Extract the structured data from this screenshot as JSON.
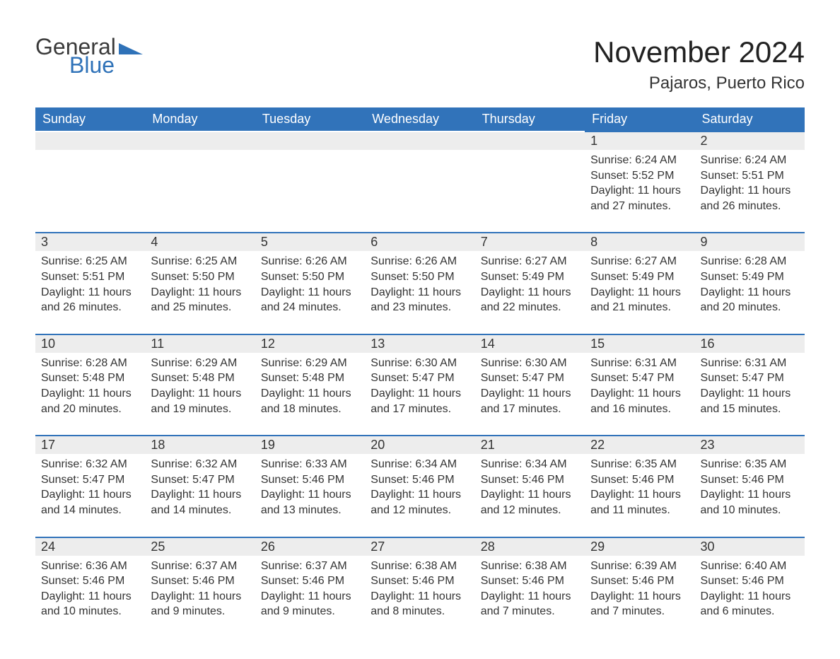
{
  "logo": {
    "text1": "General",
    "text2": "Blue",
    "tri_color": "#2f72b8"
  },
  "header": {
    "title": "November 2024",
    "location": "Pajaros, Puerto Rico"
  },
  "colors": {
    "header_bg": "#3173ba",
    "header_text": "#ffffff",
    "daynum_bg": "#ededed",
    "border": "#3173ba",
    "background": "#ffffff",
    "text": "#333333"
  },
  "typography": {
    "title_fontsize": 42,
    "location_fontsize": 24,
    "dayhead_fontsize": 18,
    "daynum_fontsize": 18,
    "body_fontsize": 16
  },
  "calendar": {
    "type": "table",
    "day_names": [
      "Sunday",
      "Monday",
      "Tuesday",
      "Wednesday",
      "Thursday",
      "Friday",
      "Saturday"
    ],
    "weeks": [
      [
        null,
        null,
        null,
        null,
        null,
        {
          "n": "1",
          "sunrise": "Sunrise: 6:24 AM",
          "sunset": "Sunset: 5:52 PM",
          "daylight": "Daylight: 11 hours and 27 minutes."
        },
        {
          "n": "2",
          "sunrise": "Sunrise: 6:24 AM",
          "sunset": "Sunset: 5:51 PM",
          "daylight": "Daylight: 11 hours and 26 minutes."
        }
      ],
      [
        {
          "n": "3",
          "sunrise": "Sunrise: 6:25 AM",
          "sunset": "Sunset: 5:51 PM",
          "daylight": "Daylight: 11 hours and 26 minutes."
        },
        {
          "n": "4",
          "sunrise": "Sunrise: 6:25 AM",
          "sunset": "Sunset: 5:50 PM",
          "daylight": "Daylight: 11 hours and 25 minutes."
        },
        {
          "n": "5",
          "sunrise": "Sunrise: 6:26 AM",
          "sunset": "Sunset: 5:50 PM",
          "daylight": "Daylight: 11 hours and 24 minutes."
        },
        {
          "n": "6",
          "sunrise": "Sunrise: 6:26 AM",
          "sunset": "Sunset: 5:50 PM",
          "daylight": "Daylight: 11 hours and 23 minutes."
        },
        {
          "n": "7",
          "sunrise": "Sunrise: 6:27 AM",
          "sunset": "Sunset: 5:49 PM",
          "daylight": "Daylight: 11 hours and 22 minutes."
        },
        {
          "n": "8",
          "sunrise": "Sunrise: 6:27 AM",
          "sunset": "Sunset: 5:49 PM",
          "daylight": "Daylight: 11 hours and 21 minutes."
        },
        {
          "n": "9",
          "sunrise": "Sunrise: 6:28 AM",
          "sunset": "Sunset: 5:49 PM",
          "daylight": "Daylight: 11 hours and 20 minutes."
        }
      ],
      [
        {
          "n": "10",
          "sunrise": "Sunrise: 6:28 AM",
          "sunset": "Sunset: 5:48 PM",
          "daylight": "Daylight: 11 hours and 20 minutes."
        },
        {
          "n": "11",
          "sunrise": "Sunrise: 6:29 AM",
          "sunset": "Sunset: 5:48 PM",
          "daylight": "Daylight: 11 hours and 19 minutes."
        },
        {
          "n": "12",
          "sunrise": "Sunrise: 6:29 AM",
          "sunset": "Sunset: 5:48 PM",
          "daylight": "Daylight: 11 hours and 18 minutes."
        },
        {
          "n": "13",
          "sunrise": "Sunrise: 6:30 AM",
          "sunset": "Sunset: 5:47 PM",
          "daylight": "Daylight: 11 hours and 17 minutes."
        },
        {
          "n": "14",
          "sunrise": "Sunrise: 6:30 AM",
          "sunset": "Sunset: 5:47 PM",
          "daylight": "Daylight: 11 hours and 17 minutes."
        },
        {
          "n": "15",
          "sunrise": "Sunrise: 6:31 AM",
          "sunset": "Sunset: 5:47 PM",
          "daylight": "Daylight: 11 hours and 16 minutes."
        },
        {
          "n": "16",
          "sunrise": "Sunrise: 6:31 AM",
          "sunset": "Sunset: 5:47 PM",
          "daylight": "Daylight: 11 hours and 15 minutes."
        }
      ],
      [
        {
          "n": "17",
          "sunrise": "Sunrise: 6:32 AM",
          "sunset": "Sunset: 5:47 PM",
          "daylight": "Daylight: 11 hours and 14 minutes."
        },
        {
          "n": "18",
          "sunrise": "Sunrise: 6:32 AM",
          "sunset": "Sunset: 5:47 PM",
          "daylight": "Daylight: 11 hours and 14 minutes."
        },
        {
          "n": "19",
          "sunrise": "Sunrise: 6:33 AM",
          "sunset": "Sunset: 5:46 PM",
          "daylight": "Daylight: 11 hours and 13 minutes."
        },
        {
          "n": "20",
          "sunrise": "Sunrise: 6:34 AM",
          "sunset": "Sunset: 5:46 PM",
          "daylight": "Daylight: 11 hours and 12 minutes."
        },
        {
          "n": "21",
          "sunrise": "Sunrise: 6:34 AM",
          "sunset": "Sunset: 5:46 PM",
          "daylight": "Daylight: 11 hours and 12 minutes."
        },
        {
          "n": "22",
          "sunrise": "Sunrise: 6:35 AM",
          "sunset": "Sunset: 5:46 PM",
          "daylight": "Daylight: 11 hours and 11 minutes."
        },
        {
          "n": "23",
          "sunrise": "Sunrise: 6:35 AM",
          "sunset": "Sunset: 5:46 PM",
          "daylight": "Daylight: 11 hours and 10 minutes."
        }
      ],
      [
        {
          "n": "24",
          "sunrise": "Sunrise: 6:36 AM",
          "sunset": "Sunset: 5:46 PM",
          "daylight": "Daylight: 11 hours and 10 minutes."
        },
        {
          "n": "25",
          "sunrise": "Sunrise: 6:37 AM",
          "sunset": "Sunset: 5:46 PM",
          "daylight": "Daylight: 11 hours and 9 minutes."
        },
        {
          "n": "26",
          "sunrise": "Sunrise: 6:37 AM",
          "sunset": "Sunset: 5:46 PM",
          "daylight": "Daylight: 11 hours and 9 minutes."
        },
        {
          "n": "27",
          "sunrise": "Sunrise: 6:38 AM",
          "sunset": "Sunset: 5:46 PM",
          "daylight": "Daylight: 11 hours and 8 minutes."
        },
        {
          "n": "28",
          "sunrise": "Sunrise: 6:38 AM",
          "sunset": "Sunset: 5:46 PM",
          "daylight": "Daylight: 11 hours and 7 minutes."
        },
        {
          "n": "29",
          "sunrise": "Sunrise: 6:39 AM",
          "sunset": "Sunset: 5:46 PM",
          "daylight": "Daylight: 11 hours and 7 minutes."
        },
        {
          "n": "30",
          "sunrise": "Sunrise: 6:40 AM",
          "sunset": "Sunset: 5:46 PM",
          "daylight": "Daylight: 11 hours and 6 minutes."
        }
      ]
    ]
  }
}
